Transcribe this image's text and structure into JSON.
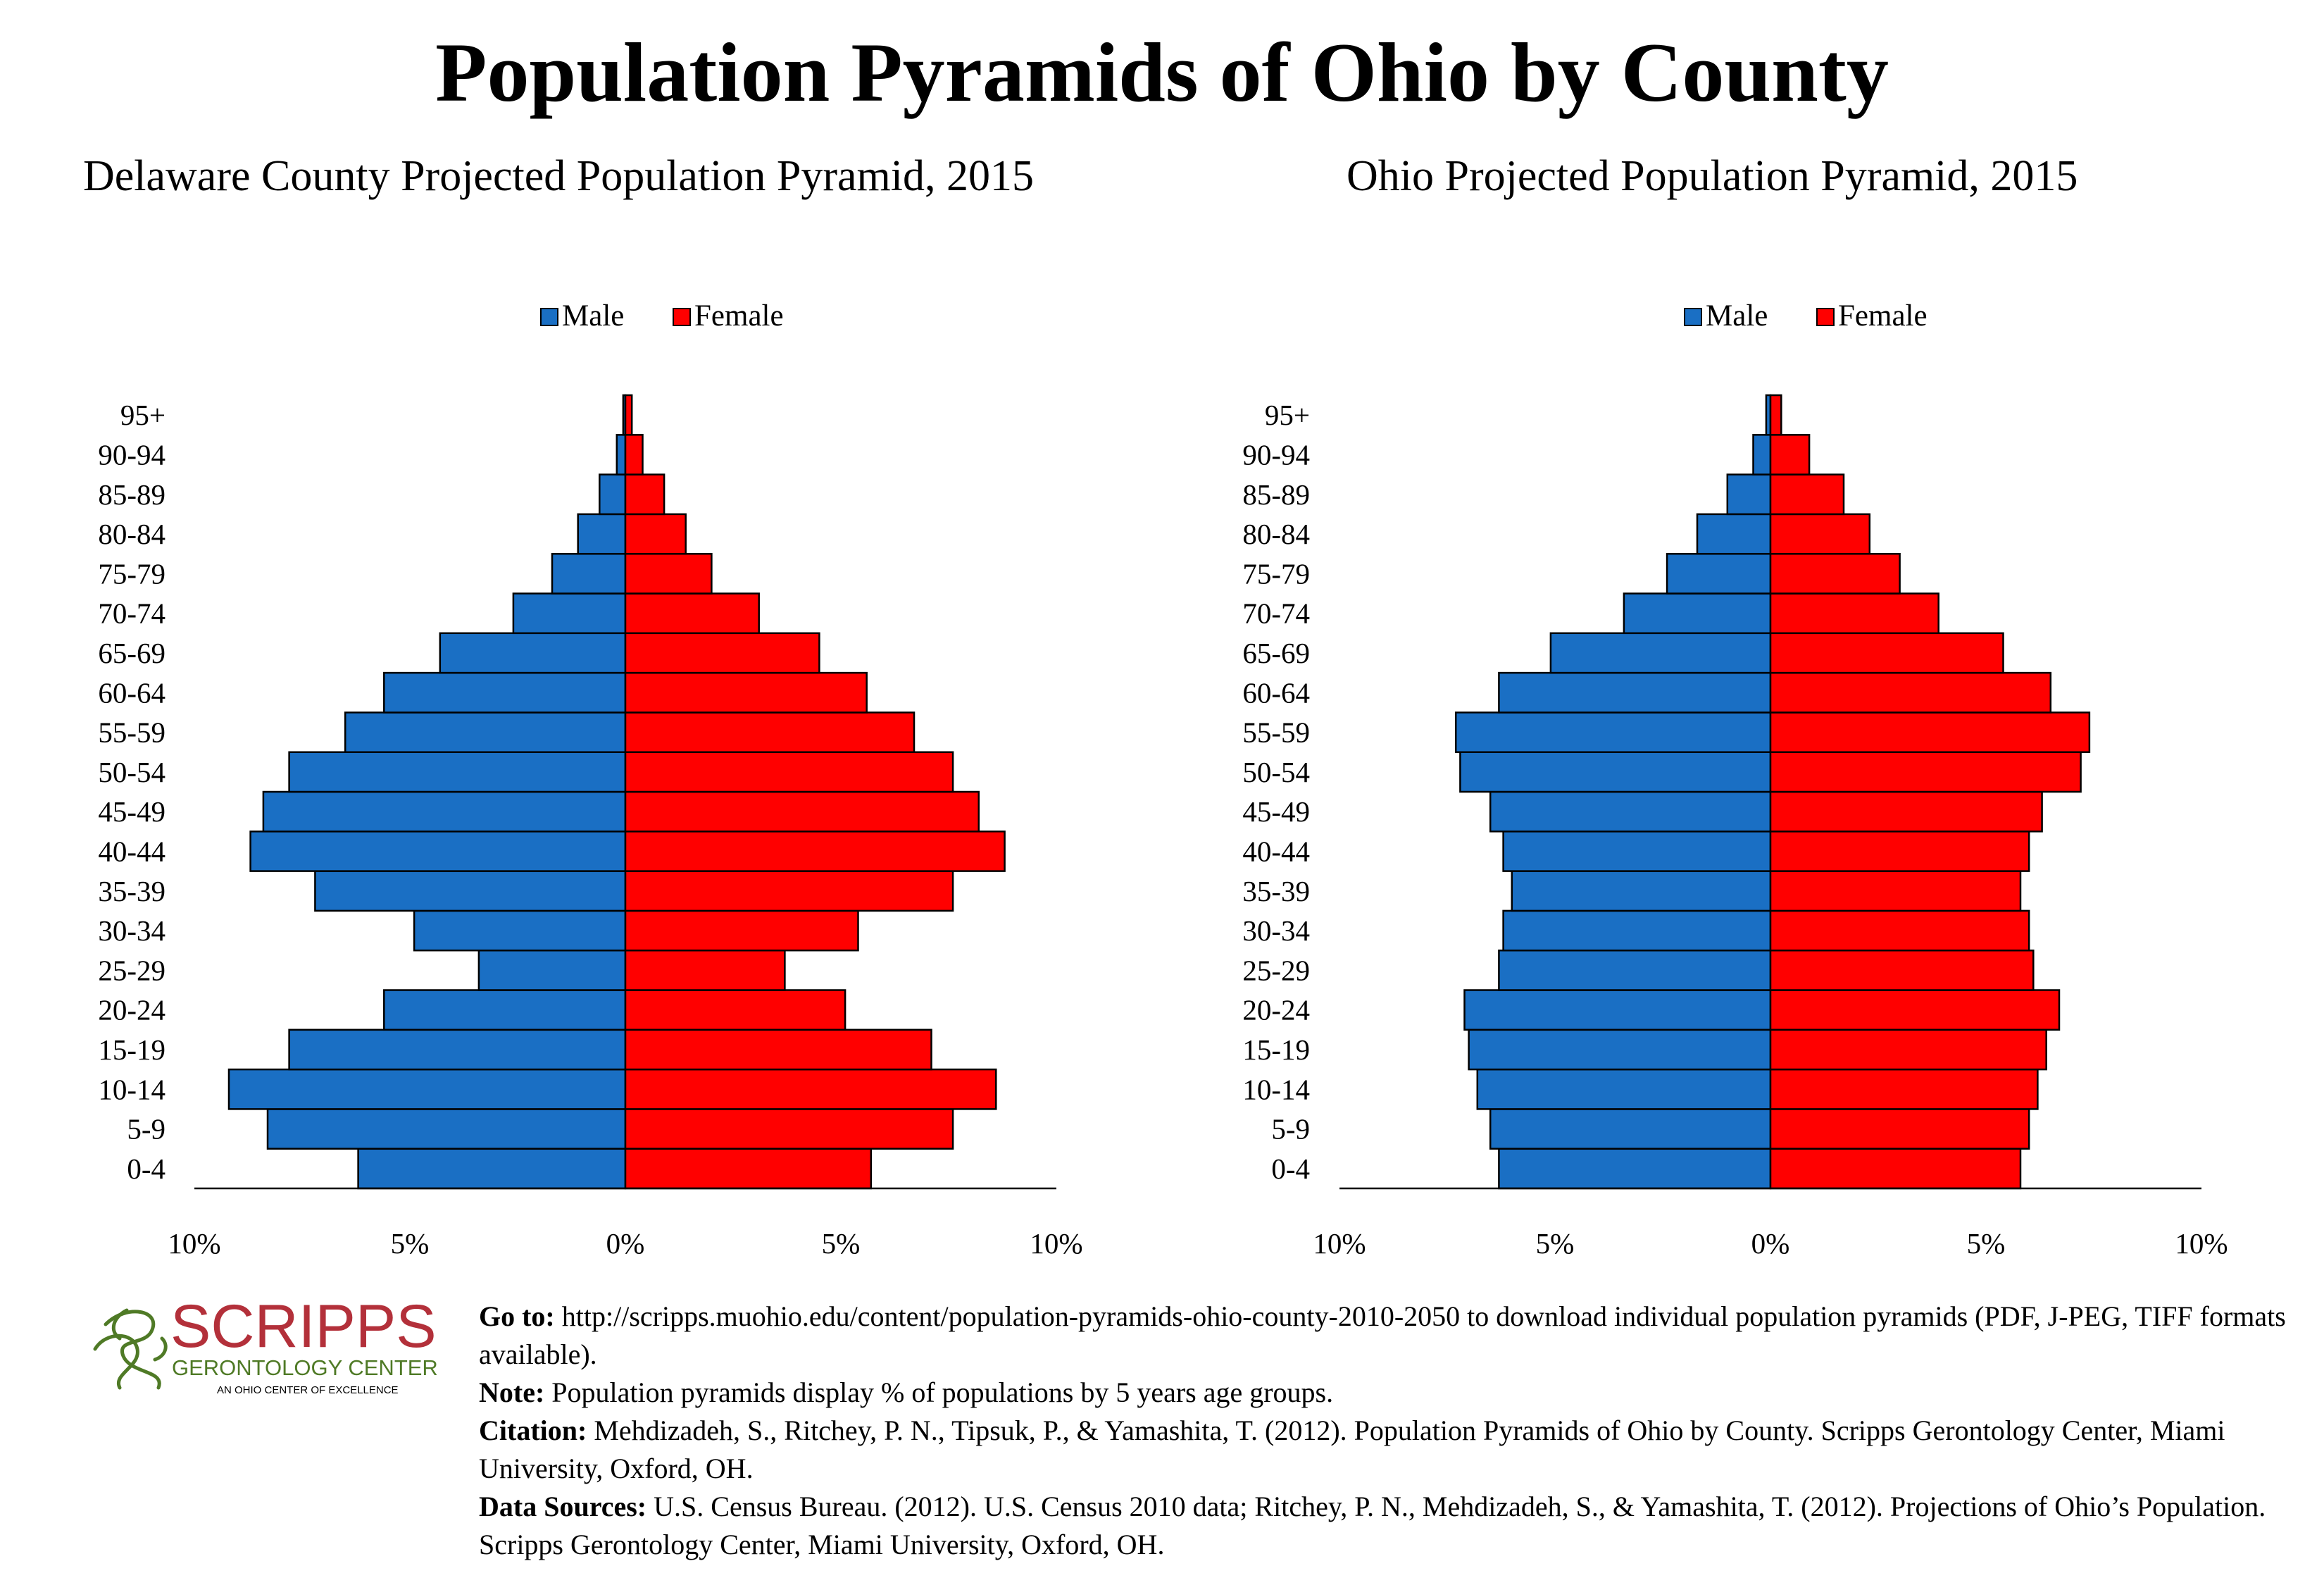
{
  "title": "Population Pyramids of Ohio by County",
  "colors": {
    "male": "#1a6fc4",
    "female": "#ff0000",
    "logo": "#b3303a",
    "logo_sub": "#4f7a26"
  },
  "charts": [
    {
      "title": "Delaware County Projected Population Pyramid, 2015"
    },
    {
      "title": "Ohio Projected Population Pyramid, 2015"
    }
  ],
  "chart_data": [
    {
      "type": "bar",
      "title": "Delaware County Projected Population Pyramid, 2015",
      "orientation": "horizontal-diverging",
      "categories": [
        "0-4",
        "5-9",
        "10-14",
        "15-19",
        "20-24",
        "25-29",
        "30-34",
        "35-39",
        "40-44",
        "45-49",
        "50-54",
        "55-59",
        "60-64",
        "65-69",
        "70-74",
        "75-79",
        "80-84",
        "85-89",
        "90-94",
        "95+"
      ],
      "series": [
        {
          "name": "Male",
          "values": [
            6.2,
            8.3,
            9.2,
            7.8,
            5.6,
            3.4,
            4.9,
            7.2,
            8.7,
            8.4,
            7.8,
            6.5,
            5.6,
            4.3,
            2.6,
            1.7,
            1.1,
            0.6,
            0.2,
            0.05
          ]
        },
        {
          "name": "Female",
          "values": [
            5.7,
            7.6,
            8.6,
            7.1,
            5.1,
            3.7,
            5.4,
            7.6,
            8.8,
            8.2,
            7.6,
            6.7,
            5.6,
            4.5,
            3.1,
            2.0,
            1.4,
            0.9,
            0.4,
            0.15
          ]
        }
      ],
      "xlim": [
        -10,
        10
      ],
      "xticks": [
        "10%",
        "5%",
        "0%",
        "5%",
        "10%"
      ],
      "legend": [
        "Male",
        "Female"
      ],
      "legend_position": "top-center",
      "grid": false
    },
    {
      "type": "bar",
      "title": "Ohio Projected Population Pyramid, 2015",
      "orientation": "horizontal-diverging",
      "categories": [
        "0-4",
        "5-9",
        "10-14",
        "15-19",
        "20-24",
        "25-29",
        "30-34",
        "35-39",
        "40-44",
        "45-49",
        "50-54",
        "55-59",
        "60-64",
        "65-69",
        "70-74",
        "75-79",
        "80-84",
        "85-89",
        "90-94",
        "95+"
      ],
      "series": [
        {
          "name": "Male",
          "values": [
            6.3,
            6.5,
            6.8,
            7.0,
            7.1,
            6.3,
            6.2,
            6.0,
            6.2,
            6.5,
            7.2,
            7.3,
            6.3,
            5.1,
            3.4,
            2.4,
            1.7,
            1.0,
            0.4,
            0.1
          ]
        },
        {
          "name": "Female",
          "values": [
            5.8,
            6.0,
            6.2,
            6.4,
            6.7,
            6.1,
            6.0,
            5.8,
            6.0,
            6.3,
            7.2,
            7.4,
            6.5,
            5.4,
            3.9,
            3.0,
            2.3,
            1.7,
            0.9,
            0.25
          ]
        }
      ],
      "xlim": [
        -10,
        10
      ],
      "xticks": [
        "10%",
        "5%",
        "0%",
        "5%",
        "10%"
      ],
      "legend": [
        "Male",
        "Female"
      ],
      "legend_position": "top-center",
      "grid": false
    }
  ],
  "logo": {
    "name": "SCRIPPS",
    "sub": "GERONTOLOGY CENTER",
    "tagline": "AN OHIO CENTER OF EXCELLENCE"
  },
  "footer": {
    "goto_label": "Go to:",
    "goto_text": "http://scripps.muohio.edu/content/population-pyramids-ohio-county-2010-2050 to download individual population pyramids (PDF, J-PEG, TIFF formats available).",
    "note_label": "Note:",
    "note_text": "Population pyramids display % of populations by 5 years age groups.",
    "citation_label": "Citation:",
    "citation_text": "Mehdizadeh, S., Ritchey, P. N., Tipsuk, P., & Yamashita, T. (2012). Population Pyramids of Ohio by County. Scripps Gerontology Center, Miami University, Oxford, OH.",
    "sources_label": "Data Sources:",
    "sources_text": "U.S. Census Bureau. (2012). U.S. Census 2010 data; Ritchey, P. N., Mehdizadeh, S., & Yamashita, T. (2012). Projections of Ohio’s Population. Scripps Gerontology Center, Miami University, Oxford, OH."
  }
}
